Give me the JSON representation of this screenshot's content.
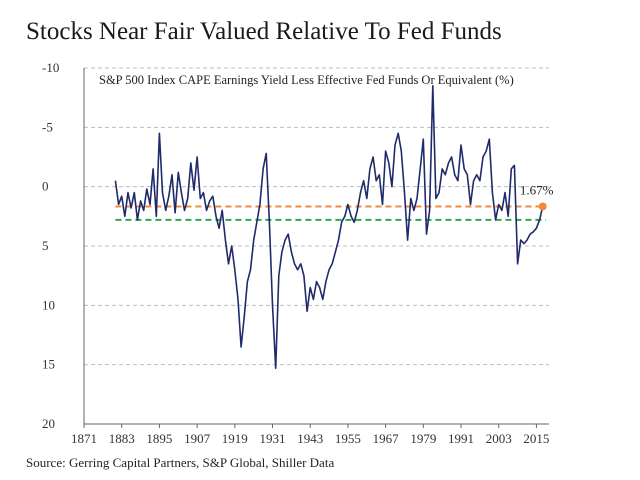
{
  "title": "Stocks Near Fair Valued Relative To Fed Funds",
  "source": "Source: Gerring Capital Partners, S&P Global, Shiller Data",
  "colors": {
    "series": "#1f2a6b",
    "orange_line": "#f08a3c",
    "green_line": "#2ea84a",
    "grid": "#bdbdbd",
    "marker": "#f08a3c"
  },
  "chart_data": {
    "type": "line",
    "subtitle": "S&P 500 Index CAPE Earnings Yield Less Effective Fed Funds Or Equivalent (%)",
    "xlim": [
      1871,
      2019
    ],
    "ylim": [
      20,
      -10
    ],
    "y_inverted": true,
    "x_ticks": [
      "1871",
      "1883",
      "1895",
      "1907",
      "1919",
      "1931",
      "1943",
      "1955",
      "1967",
      "1979",
      "1991",
      "2003",
      "2015"
    ],
    "y_ticks": [
      "-10",
      "-5",
      "0",
      "5",
      "10",
      "15",
      "20"
    ],
    "grid": "horizontal dashed",
    "reference_lines": [
      {
        "color": "orange",
        "style": "dashed",
        "y": 1.67
      },
      {
        "color": "green",
        "style": "dashed",
        "y": 2.8
      }
    ],
    "annotation": {
      "text": "1.67%",
      "x": 2017,
      "y": 1.67
    },
    "series": [
      {
        "x": [
          1881,
          1882,
          1883,
          1884,
          1885,
          1886,
          1887,
          1888,
          1889,
          1890,
          1891,
          1892,
          1893,
          1894,
          1895,
          1896,
          1897,
          1898,
          1899,
          1900,
          1901,
          1902,
          1903,
          1904,
          1905,
          1906,
          1907,
          1908,
          1909,
          1910,
          1911,
          1912,
          1913,
          1914,
          1915,
          1916,
          1917,
          1918,
          1919,
          1920,
          1921,
          1922,
          1923,
          1924,
          1925,
          1926,
          1927,
          1928,
          1929,
          1930,
          1931,
          1932,
          1933,
          1934,
          1935,
          1936,
          1937,
          1938,
          1939,
          1940,
          1941,
          1942,
          1943,
          1944,
          1945,
          1946,
          1947,
          1948,
          1949,
          1950,
          1951,
          1952,
          1953,
          1954,
          1955,
          1956,
          1957,
          1958,
          1959,
          1960,
          1961,
          1962,
          1963,
          1964,
          1965,
          1966,
          1967,
          1968,
          1969,
          1970,
          1971,
          1972,
          1973,
          1974,
          1975,
          1976,
          1977,
          1978,
          1979,
          1980,
          1981,
          1982,
          1983,
          1984,
          1985,
          1986,
          1987,
          1988,
          1989,
          1990,
          1991,
          1992,
          1993,
          1994,
          1995,
          1996,
          1997,
          1998,
          1999,
          2000,
          2001,
          2002,
          2003,
          2004,
          2005,
          2006,
          2007,
          2008,
          2009,
          2010,
          2011,
          2012,
          2013,
          2014,
          2015,
          2016,
          2017
        ],
        "y": [
          -0.5,
          1.5,
          0.8,
          2.5,
          0.5,
          1.8,
          0.5,
          2.8,
          1.2,
          2.0,
          0.2,
          1.5,
          -1.5,
          2.5,
          -4.5,
          0.5,
          2.0,
          0.8,
          -1.0,
          2.2,
          -1.2,
          0.5,
          2.0,
          1.0,
          -2.0,
          0.3,
          -2.5,
          1.0,
          0.5,
          2.0,
          1.2,
          0.8,
          2.5,
          3.5,
          2.0,
          4.5,
          6.5,
          5.0,
          7.0,
          9.5,
          13.5,
          11.0,
          8.0,
          7.0,
          4.5,
          3.0,
          1.5,
          -1.5,
          -2.8,
          3.0,
          10.0,
          15.3,
          7.5,
          5.5,
          4.5,
          4.0,
          5.5,
          6.5,
          7.0,
          6.5,
          7.5,
          10.5,
          8.5,
          9.5,
          8.0,
          8.5,
          9.5,
          8.0,
          7.0,
          6.5,
          5.5,
          4.5,
          3.0,
          2.5,
          1.5,
          2.5,
          3.0,
          2.0,
          0.5,
          -0.5,
          1.0,
          -1.5,
          -2.5,
          -0.5,
          -1.0,
          1.5,
          -3.0,
          -2.0,
          0.0,
          -3.5,
          -4.5,
          -3.0,
          0.5,
          4.5,
          1.0,
          2.0,
          1.0,
          -1.5,
          -4.0,
          4.0,
          2.0,
          -8.5,
          1.0,
          0.5,
          -1.5,
          -1.0,
          -2.0,
          -2.5,
          -1.0,
          -0.5,
          -3.5,
          -1.5,
          -1.0,
          1.5,
          -0.5,
          -1.0,
          -0.5,
          -2.5,
          -3.0,
          -4.0,
          0.5,
          2.8,
          1.5,
          2.0,
          0.5,
          2.5,
          -1.5,
          -1.8,
          6.5,
          4.5,
          4.8,
          4.5,
          4.0,
          3.8,
          3.5,
          2.8,
          1.67
        ]
      }
    ]
  }
}
